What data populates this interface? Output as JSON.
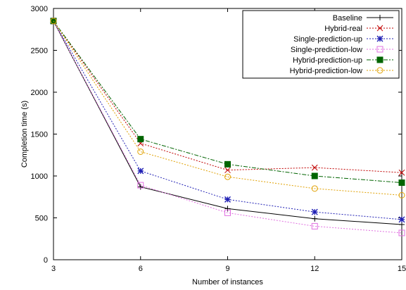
{
  "chart_data": {
    "type": "line",
    "title": "",
    "xlabel": "Number of instances",
    "ylabel": "Completion time (s)",
    "x": [
      3,
      6,
      9,
      12,
      15
    ],
    "xlim": [
      3,
      15
    ],
    "ylim": [
      0,
      3000
    ],
    "xticks": [
      "3",
      "6",
      "9",
      "12",
      "15"
    ],
    "yticks": [
      "0",
      "500",
      "1000",
      "1500",
      "2000",
      "2500",
      "3000"
    ],
    "grid": false,
    "legend_position": "top-right",
    "series": [
      {
        "name": "Baseline",
        "color": "#000000",
        "marker": "plus",
        "dash": "solid",
        "values": [
          2850,
          870,
          610,
          490,
          420
        ]
      },
      {
        "name": "Hybrid-real",
        "color": "#c00000",
        "marker": "cross",
        "dash": "dotted",
        "values": [
          2850,
          1390,
          1070,
          1100,
          1040
        ]
      },
      {
        "name": "Single-prediction-up",
        "color": "#1f1fb4",
        "marker": "star",
        "dash": "dotted",
        "values": [
          2850,
          1060,
          720,
          570,
          480
        ]
      },
      {
        "name": "Single-prediction-low",
        "color": "#e070e0",
        "marker": "open-square",
        "dash": "dotted",
        "values": [
          2850,
          890,
          560,
          400,
          320
        ]
      },
      {
        "name": "Hybrid-prediction-up",
        "color": "#006400",
        "marker": "filled-square",
        "dash": "dashdot",
        "values": [
          2850,
          1440,
          1140,
          1000,
          920
        ]
      },
      {
        "name": "Hybrid-prediction-low",
        "color": "#e0a000",
        "marker": "open-circle",
        "dash": "dotted",
        "values": [
          2850,
          1290,
          990,
          850,
          770
        ]
      }
    ]
  }
}
